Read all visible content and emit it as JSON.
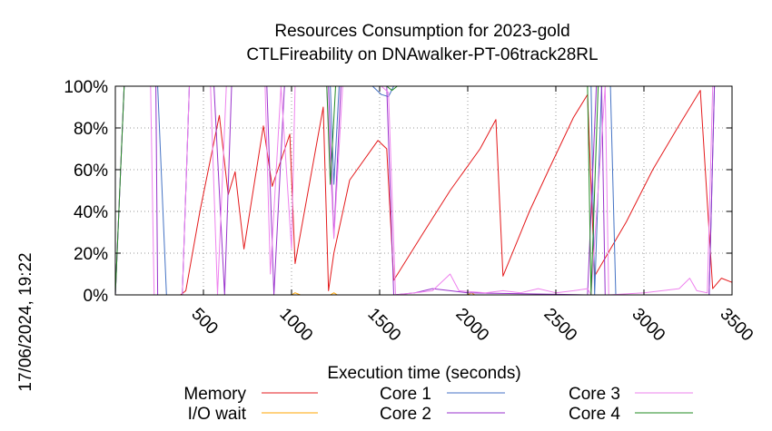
{
  "chart_data": {
    "type": "line",
    "title": "Resources Consumption for 2023-gold",
    "subtitle": "CTLFireability on DNAwalker-PT-06track28RL",
    "xlabel": "Execution time (seconds)",
    "ylabel": "",
    "xlim": [
      0,
      3500
    ],
    "ylim": [
      0,
      100
    ],
    "x_ticks": [
      500,
      1000,
      1500,
      2000,
      2500,
      3000,
      3500
    ],
    "y_ticks": [
      0,
      20,
      40,
      60,
      80,
      100
    ],
    "x_tick_labels": [
      "500",
      "1000",
      "1500",
      "2000",
      "2500",
      "3000",
      "3500"
    ],
    "y_tick_labels": [
      "0%",
      "20%",
      "40%",
      "60%",
      "80%",
      "100%"
    ],
    "grid": true,
    "legend_position": "bottom",
    "timestamp": "17/06/2024, 19:22",
    "series": [
      {
        "name": "Memory",
        "color": "#e41a1c",
        "points": [
          [
            0,
            0
          ],
          [
            100,
            0
          ],
          [
            200,
            0
          ],
          [
            300,
            0
          ],
          [
            370,
            0
          ],
          [
            400,
            2
          ],
          [
            480,
            40
          ],
          [
            590,
            86
          ],
          [
            640,
            48
          ],
          [
            680,
            59
          ],
          [
            730,
            22
          ],
          [
            840,
            81
          ],
          [
            890,
            52
          ],
          [
            990,
            77
          ],
          [
            1020,
            15
          ],
          [
            1180,
            90
          ],
          [
            1210,
            2
          ],
          [
            1240,
            20
          ],
          [
            1330,
            55
          ],
          [
            1490,
            74
          ],
          [
            1540,
            70
          ],
          [
            1580,
            7
          ],
          [
            1750,
            30
          ],
          [
            1900,
            50
          ],
          [
            2070,
            70
          ],
          [
            2160,
            84
          ],
          [
            2200,
            9
          ],
          [
            2350,
            40
          ],
          [
            2460,
            60
          ],
          [
            2600,
            85
          ],
          [
            2680,
            96
          ],
          [
            2720,
            9
          ],
          [
            2900,
            35
          ],
          [
            3050,
            60
          ],
          [
            3190,
            80
          ],
          [
            3320,
            98
          ],
          [
            3390,
            3
          ],
          [
            3440,
            8
          ],
          [
            3500,
            6
          ]
        ]
      },
      {
        "name": "I/O wait",
        "color": "#ffa500",
        "points": [
          [
            0,
            0
          ],
          [
            1000,
            0
          ],
          [
            1020,
            1
          ],
          [
            1050,
            0
          ],
          [
            1220,
            0
          ],
          [
            1240,
            1
          ],
          [
            1260,
            0
          ],
          [
            2000,
            0
          ],
          [
            2020,
            1
          ],
          [
            2040,
            0
          ],
          [
            3500,
            0
          ]
        ]
      },
      {
        "name": "Core 1",
        "color": "#4472c4",
        "points": [
          [
            0,
            0
          ],
          [
            50,
            100
          ],
          [
            200,
            100
          ],
          [
            215,
            100
          ],
          [
            240,
            100
          ],
          [
            290,
            0
          ],
          [
            380,
            0
          ],
          [
            420,
            100
          ],
          [
            1220,
            100
          ],
          [
            1240,
            53
          ],
          [
            1270,
            100
          ],
          [
            1460,
            100
          ],
          [
            1510,
            96
          ],
          [
            1550,
            95
          ],
          [
            1580,
            100
          ],
          [
            2700,
            100
          ],
          [
            2720,
            0
          ],
          [
            2760,
            100
          ],
          [
            2810,
            100
          ],
          [
            2840,
            0
          ],
          [
            3370,
            0
          ],
          [
            3400,
            100
          ],
          [
            3500,
            100
          ]
        ]
      },
      {
        "name": "Core 2",
        "color": "#9932cc",
        "points": [
          [
            0,
            0
          ],
          [
            50,
            100
          ],
          [
            200,
            100
          ],
          [
            230,
            100
          ],
          [
            240,
            0
          ],
          [
            380,
            0
          ],
          [
            420,
            100
          ],
          [
            560,
            100
          ],
          [
            620,
            0
          ],
          [
            660,
            100
          ],
          [
            860,
            100
          ],
          [
            900,
            0
          ],
          [
            960,
            100
          ],
          [
            1000,
            100
          ],
          [
            1050,
            100
          ],
          [
            1210,
            100
          ],
          [
            1240,
            28
          ],
          [
            1280,
            100
          ],
          [
            1520,
            100
          ],
          [
            1540,
            100
          ],
          [
            1580,
            0
          ],
          [
            1700,
            1
          ],
          [
            1800,
            3
          ],
          [
            1900,
            2
          ],
          [
            2000,
            1
          ],
          [
            2680,
            0
          ],
          [
            2730,
            100
          ],
          [
            2760,
            100
          ],
          [
            2780,
            0
          ],
          [
            3370,
            0
          ],
          [
            3400,
            100
          ],
          [
            3500,
            100
          ]
        ]
      },
      {
        "name": "Core 3",
        "color": "#ee82ee",
        "points": [
          [
            0,
            0
          ],
          [
            50,
            100
          ],
          [
            170,
            100
          ],
          [
            200,
            100
          ],
          [
            220,
            0
          ],
          [
            380,
            0
          ],
          [
            420,
            100
          ],
          [
            540,
            100
          ],
          [
            580,
            0
          ],
          [
            630,
            100
          ],
          [
            850,
            100
          ],
          [
            880,
            10
          ],
          [
            940,
            100
          ],
          [
            1000,
            22
          ],
          [
            1020,
            100
          ],
          [
            1200,
            100
          ],
          [
            1240,
            27
          ],
          [
            1290,
            100
          ],
          [
            1510,
            100
          ],
          [
            1550,
            97
          ],
          [
            1590,
            0
          ],
          [
            1700,
            1
          ],
          [
            1800,
            2
          ],
          [
            1900,
            10
          ],
          [
            1950,
            2
          ],
          [
            2100,
            1
          ],
          [
            2200,
            2
          ],
          [
            2300,
            1
          ],
          [
            2400,
            3
          ],
          [
            2500,
            1
          ],
          [
            2600,
            2
          ],
          [
            2680,
            3
          ],
          [
            2700,
            0
          ],
          [
            2780,
            100
          ],
          [
            2800,
            0
          ],
          [
            3000,
            1
          ],
          [
            3200,
            3
          ],
          [
            3260,
            8
          ],
          [
            3300,
            2
          ],
          [
            3360,
            1
          ],
          [
            3390,
            100
          ],
          [
            3500,
            100
          ]
        ]
      },
      {
        "name": "Core 4",
        "color": "#228b22",
        "points": [
          [
            0,
            0
          ],
          [
            50,
            100
          ],
          [
            1200,
            100
          ],
          [
            1220,
            53
          ],
          [
            1250,
            100
          ],
          [
            1480,
            100
          ],
          [
            1540,
            100
          ],
          [
            1570,
            98
          ],
          [
            1600,
            100
          ],
          [
            2680,
            100
          ],
          [
            2700,
            0
          ],
          [
            2740,
            100
          ],
          [
            3500,
            100
          ]
        ]
      }
    ]
  }
}
